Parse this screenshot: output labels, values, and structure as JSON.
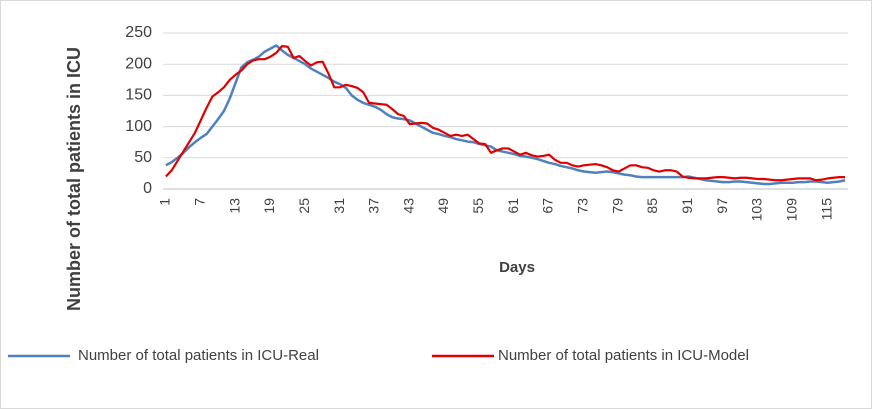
{
  "chart_data": {
    "type": "line",
    "y_label": "Number of total patients in ICU",
    "x_label": "Days",
    "categories": [
      "1",
      null,
      null,
      null,
      null,
      null,
      "7",
      null,
      null,
      null,
      null,
      null,
      "13",
      null,
      null,
      null,
      null,
      null,
      "19",
      null,
      null,
      null,
      null,
      null,
      "25",
      null,
      null,
      null,
      null,
      null,
      "31",
      null,
      null,
      null,
      null,
      null,
      "37",
      null,
      null,
      null,
      null,
      null,
      "43",
      null,
      null,
      null,
      null,
      null,
      "49",
      null,
      null,
      null,
      null,
      null,
      "55",
      null,
      null,
      null,
      null,
      null,
      "61",
      null,
      null,
      null,
      null,
      null,
      "67",
      null,
      null,
      null,
      null,
      null,
      "73",
      null,
      null,
      null,
      null,
      null,
      "79",
      null,
      null,
      null,
      null,
      null,
      "85",
      null,
      null,
      null,
      null,
      null,
      "91",
      null,
      null,
      null,
      null,
      null,
      "97",
      null,
      null,
      null,
      null,
      null,
      "103",
      null,
      null,
      null,
      null,
      null,
      "109",
      null,
      null,
      null,
      null,
      null,
      "115",
      null,
      null,
      null
    ],
    "series": [
      {
        "name": "Number of total patients in ICU-Real",
        "color": "#4f81bd",
        "values": [
          38,
          43,
          50,
          58,
          67,
          75,
          82,
          88,
          100,
          112,
          125,
          145,
          170,
          195,
          203,
          207,
          212,
          220,
          225,
          230,
          222,
          215,
          210,
          205,
          200,
          193,
          188,
          183,
          178,
          172,
          168,
          162,
          150,
          143,
          138,
          135,
          132,
          127,
          120,
          115,
          113,
          112,
          110,
          105,
          100,
          95,
          90,
          88,
          85,
          83,
          80,
          78,
          76,
          75,
          72,
          70,
          68,
          62,
          60,
          58,
          56,
          53,
          52,
          50,
          48,
          45,
          42,
          40,
          37,
          35,
          33,
          30,
          28,
          27,
          26,
          27,
          28,
          27,
          25,
          23,
          22,
          20,
          19,
          19,
          19,
          19,
          19,
          19,
          19,
          19,
          20,
          18,
          16,
          14,
          13,
          12,
          11,
          11,
          12,
          12,
          11,
          10,
          9,
          8,
          8,
          9,
          10,
          10,
          10,
          11,
          11,
          12,
          12,
          11,
          10,
          11,
          12,
          14
        ]
      },
      {
        "name": "Number of total patients in ICU-Model",
        "color": "#e00000",
        "values": [
          20,
          30,
          45,
          60,
          75,
          90,
          110,
          130,
          148,
          155,
          163,
          175,
          183,
          190,
          200,
          206,
          208,
          208,
          212,
          218,
          229,
          228,
          210,
          213,
          205,
          198,
          203,
          204,
          185,
          163,
          163,
          167,
          165,
          162,
          155,
          138,
          137,
          136,
          135,
          128,
          120,
          117,
          104,
          105,
          106,
          105,
          98,
          95,
          90,
          85,
          87,
          85,
          87,
          80,
          73,
          72,
          58,
          62,
          65,
          65,
          60,
          55,
          58,
          54,
          52,
          53,
          55,
          47,
          42,
          42,
          38,
          36,
          38,
          39,
          40,
          38,
          35,
          30,
          28,
          33,
          38,
          38,
          35,
          34,
          30,
          28,
          30,
          30,
          28,
          20,
          18,
          17,
          17,
          17,
          18,
          19,
          19,
          18,
          17,
          18,
          18,
          17,
          16,
          16,
          15,
          14,
          14,
          15,
          16,
          17,
          17,
          17,
          14,
          15,
          17,
          18,
          19,
          19
        ]
      }
    ],
    "ylim": [
      0,
      250
    ],
    "yticks": [
      0,
      50,
      100,
      150,
      200,
      250
    ],
    "grid": true,
    "legend": "bottom"
  }
}
